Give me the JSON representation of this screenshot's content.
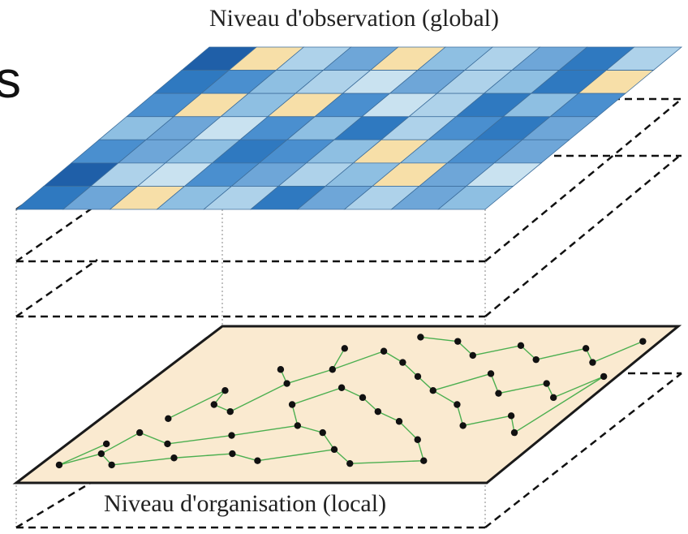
{
  "labels": {
    "top": "Niveau d'observation (global)",
    "bottom": "Niveau d'organisation (local)",
    "edge_glyph": "s"
  },
  "colors": {
    "cell_palette": [
      "#1f5fa8",
      "#2f79c0",
      "#4a8fcf",
      "#6ea6d8",
      "#8ebfe2",
      "#aed2ea",
      "#c9e2f0",
      "#f7dfa8"
    ],
    "grid_stroke": "#3d6e9c",
    "plane_fill": "#faead0",
    "plane_stroke": "#1a1a1a",
    "network_edge": "#4caf50",
    "network_node": "#111111",
    "dashed_line": "#111111",
    "dotted_line": "#999999"
  },
  "top_grid": {
    "rows": 7,
    "cols": 10,
    "cells": [
      [
        0,
        7,
        5,
        3,
        7,
        4,
        5,
        3,
        1,
        5
      ],
      [
        1,
        2,
        4,
        5,
        6,
        3,
        5,
        4,
        1,
        7
      ],
      [
        2,
        7,
        4,
        7,
        2,
        6,
        5,
        1,
        4,
        2
      ],
      [
        4,
        3,
        6,
        2,
        4,
        1,
        5,
        2,
        1,
        3
      ],
      [
        2,
        3,
        4,
        1,
        2,
        4,
        7,
        4,
        2,
        3
      ],
      [
        0,
        5,
        6,
        2,
        3,
        5,
        4,
        7,
        3,
        6
      ],
      [
        1,
        3,
        7,
        4,
        5,
        1,
        3,
        5,
        3,
        4
      ]
    ]
  },
  "network": {
    "nodes": [
      [
        0.02,
        0.93
      ],
      [
        0.08,
        0.85
      ],
      [
        0.1,
        0.7
      ],
      [
        0.14,
        0.93
      ],
      [
        0.18,
        0.5
      ],
      [
        0.2,
        0.78
      ],
      [
        0.24,
        0.55
      ],
      [
        0.26,
        0.88
      ],
      [
        0.28,
        0.35
      ],
      [
        0.32,
        0.72
      ],
      [
        0.3,
        0.1
      ],
      [
        0.34,
        0.25
      ],
      [
        0.36,
        0.5
      ],
      [
        0.38,
        0.85
      ],
      [
        0.4,
        0.12
      ],
      [
        0.42,
        0.38
      ],
      [
        0.44,
        0.65
      ],
      [
        0.46,
        0.9
      ],
      [
        0.48,
        0.2
      ],
      [
        0.5,
        0.45
      ],
      [
        0.52,
        0.7
      ],
      [
        0.54,
        0.05
      ],
      [
        0.56,
        0.3
      ],
      [
        0.58,
        0.55
      ],
      [
        0.6,
        0.82
      ],
      [
        0.62,
        0.15
      ],
      [
        0.64,
        0.4
      ],
      [
        0.66,
        0.62
      ],
      [
        0.68,
        0.92
      ],
      [
        0.7,
        0.08
      ],
      [
        0.72,
        0.28
      ],
      [
        0.74,
        0.5
      ],
      [
        0.76,
        0.75
      ],
      [
        0.78,
        0.18
      ],
      [
        0.8,
        0.42
      ],
      [
        0.82,
        0.65
      ],
      [
        0.84,
        0.9
      ],
      [
        0.86,
        0.1
      ],
      [
        0.88,
        0.35
      ],
      [
        0.9,
        0.58
      ],
      [
        0.92,
        0.2
      ],
      [
        0.94,
        0.45
      ],
      [
        0.96,
        0.7
      ],
      [
        0.97,
        0.05
      ],
      [
        0.99,
        0.3
      ],
      [
        0.12,
        0.6
      ],
      [
        0.22,
        0.25
      ],
      [
        0.16,
        0.4
      ],
      [
        0.06,
        0.78
      ],
      [
        0.44,
        0.02
      ]
    ],
    "edges": [
      [
        0,
        1
      ],
      [
        1,
        2
      ],
      [
        1,
        3
      ],
      [
        2,
        5
      ],
      [
        3,
        7
      ],
      [
        4,
        6
      ],
      [
        5,
        9
      ],
      [
        6,
        8
      ],
      [
        7,
        13
      ],
      [
        8,
        11
      ],
      [
        10,
        11
      ],
      [
        11,
        14
      ],
      [
        12,
        15
      ],
      [
        13,
        17
      ],
      [
        14,
        18
      ],
      [
        15,
        19
      ],
      [
        16,
        20
      ],
      [
        17,
        24
      ],
      [
        18,
        22
      ],
      [
        19,
        23
      ],
      [
        20,
        24
      ],
      [
        21,
        25
      ],
      [
        22,
        26
      ],
      [
        23,
        27
      ],
      [
        24,
        28
      ],
      [
        25,
        29
      ],
      [
        26,
        31
      ],
      [
        27,
        32
      ],
      [
        28,
        36
      ],
      [
        29,
        33
      ],
      [
        30,
        34
      ],
      [
        31,
        35
      ],
      [
        32,
        36
      ],
      [
        33,
        37
      ],
      [
        34,
        38
      ],
      [
        35,
        39
      ],
      [
        37,
        40
      ],
      [
        38,
        41
      ],
      [
        39,
        42
      ],
      [
        40,
        43
      ],
      [
        41,
        44
      ],
      [
        45,
        47
      ],
      [
        46,
        8
      ],
      [
        47,
        4
      ],
      [
        48,
        0
      ],
      [
        49,
        21
      ],
      [
        12,
        16
      ],
      [
        9,
        16
      ],
      [
        30,
        26
      ],
      [
        42,
        44
      ]
    ]
  }
}
